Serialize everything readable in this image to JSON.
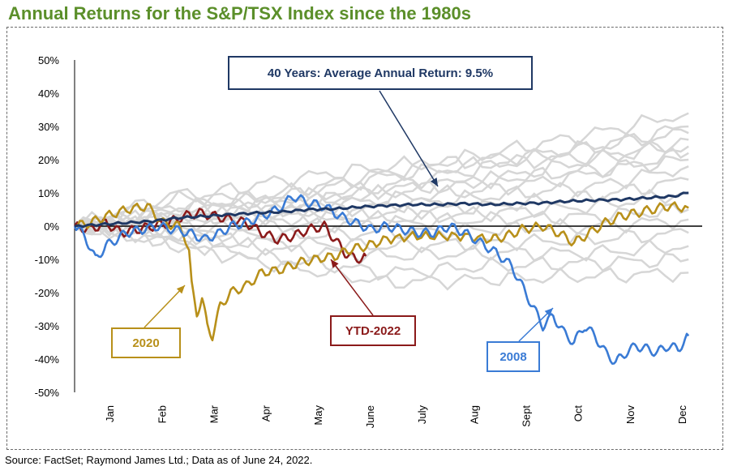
{
  "title": "Annual Returns for the S&P/TSX Index since the 1980s",
  "source": "Source: FactSet; Raymond James Ltd.; Data as of June 24, 2022.",
  "colors": {
    "title": "#5b8f2a",
    "gray_years": "#d6d6d6",
    "average": "#1f3864",
    "y2020": "#b8901a",
    "y2008": "#3a7bd5",
    "ytd2022": "#8b1a1a",
    "zero_line": "#000000"
  },
  "chart_data": {
    "type": "line",
    "title": "Annual Returns for the S&P/TSX Index since the 1980s",
    "xlabel": "",
    "ylabel": "",
    "x_categories": [
      "Jan",
      "Feb",
      "Mar",
      "Apr",
      "May",
      "June",
      "July",
      "Aug",
      "Sept",
      "Oct",
      "Nov",
      "Dec"
    ],
    "y_ticks": [
      "50%",
      "40%",
      "30%",
      "20%",
      "10%",
      "0%",
      "-10%",
      "-20%",
      "-30%",
      "-40%",
      "-50%"
    ],
    "ylim": [
      -50,
      50
    ],
    "grid": false,
    "x_unit": "month of year (0 = start of year, 12 = end of year)",
    "series": [
      {
        "name": "40 Years: Average Annual Return: 9.5%",
        "highlight": "average",
        "points": [
          [
            0,
            0
          ],
          [
            0.5,
            0.5
          ],
          [
            1,
            1
          ],
          [
            1.5,
            1.5
          ],
          [
            2,
            2.5
          ],
          [
            2.5,
            3
          ],
          [
            3,
            3.5
          ],
          [
            3.5,
            4
          ],
          [
            4,
            4.3
          ],
          [
            4.5,
            5
          ],
          [
            5,
            5.2
          ],
          [
            5.5,
            5.8
          ],
          [
            6,
            6.2
          ],
          [
            6.5,
            6.5
          ],
          [
            7,
            6.5
          ],
          [
            7.5,
            6.8
          ],
          [
            8,
            6.5
          ],
          [
            8.5,
            6.8
          ],
          [
            9,
            7
          ],
          [
            9.5,
            7.5
          ],
          [
            10,
            7.8
          ],
          [
            10.5,
            8
          ],
          [
            11,
            8.5
          ],
          [
            11.5,
            9
          ],
          [
            11.8,
            10
          ]
        ]
      },
      {
        "name": "2020",
        "highlight": "y2020",
        "points": [
          [
            0,
            0
          ],
          [
            0.3,
            1
          ],
          [
            0.6,
            3
          ],
          [
            1,
            5
          ],
          [
            1.4,
            6
          ],
          [
            1.7,
            1
          ],
          [
            2,
            0
          ],
          [
            2.1,
            -2
          ],
          [
            2.2,
            -8
          ],
          [
            2.25,
            -18
          ],
          [
            2.35,
            -26
          ],
          [
            2.45,
            -22
          ],
          [
            2.55,
            -30
          ],
          [
            2.65,
            -33
          ],
          [
            2.8,
            -24
          ],
          [
            3,
            -20
          ],
          [
            3.3,
            -18
          ],
          [
            3.6,
            -14
          ],
          [
            4,
            -13
          ],
          [
            4.3,
            -11
          ],
          [
            4.6,
            -10
          ],
          [
            5,
            -9
          ],
          [
            5.3,
            -7
          ],
          [
            5.6,
            -6
          ],
          [
            6,
            -4
          ],
          [
            6.5,
            -3
          ],
          [
            7,
            -3
          ],
          [
            7.5,
            -3
          ],
          [
            8,
            -4
          ],
          [
            8.3,
            -3
          ],
          [
            8.6,
            -1
          ],
          [
            9,
            0
          ],
          [
            9.3,
            -2
          ],
          [
            9.6,
            -5
          ],
          [
            9.9,
            -2
          ],
          [
            10.2,
            1
          ],
          [
            10.5,
            3
          ],
          [
            10.8,
            4
          ],
          [
            11.1,
            5
          ],
          [
            11.4,
            6
          ],
          [
            11.8,
            5.5
          ]
        ]
      },
      {
        "name": "2008",
        "highlight": "y2008",
        "points": [
          [
            0,
            0
          ],
          [
            0.2,
            -3
          ],
          [
            0.4,
            -10
          ],
          [
            0.6,
            -6
          ],
          [
            0.8,
            -4
          ],
          [
            1,
            -2
          ],
          [
            1.3,
            -1
          ],
          [
            1.6,
            0
          ],
          [
            1.9,
            -1
          ],
          [
            2.2,
            -2
          ],
          [
            2.5,
            -4
          ],
          [
            2.8,
            -2
          ],
          [
            3,
            0
          ],
          [
            3.3,
            1
          ],
          [
            3.6,
            3
          ],
          [
            3.9,
            5
          ],
          [
            4.2,
            9
          ],
          [
            4.5,
            7
          ],
          [
            4.8,
            6
          ],
          [
            5.1,
            3
          ],
          [
            5.4,
            1
          ],
          [
            5.7,
            -1
          ],
          [
            6,
            0
          ],
          [
            6.3,
            -1
          ],
          [
            6.6,
            -2
          ],
          [
            6.9,
            -2
          ],
          [
            7.2,
            0
          ],
          [
            7.5,
            -2
          ],
          [
            7.8,
            -5
          ],
          [
            8.1,
            -8
          ],
          [
            8.4,
            -12
          ],
          [
            8.6,
            -18
          ],
          [
            8.8,
            -24
          ],
          [
            9,
            -30
          ],
          [
            9.2,
            -27
          ],
          [
            9.4,
            -32
          ],
          [
            9.6,
            -35
          ],
          [
            9.8,
            -30
          ],
          [
            10,
            -33
          ],
          [
            10.2,
            -38
          ],
          [
            10.4,
            -41
          ],
          [
            10.6,
            -38
          ],
          [
            10.8,
            -36
          ],
          [
            11,
            -37
          ],
          [
            11.2,
            -38
          ],
          [
            11.4,
            -36
          ],
          [
            11.6,
            -37
          ],
          [
            11.8,
            -33
          ]
        ]
      },
      {
        "name": "YTD-2022",
        "highlight": "ytd2022",
        "points": [
          [
            0,
            0
          ],
          [
            0.3,
            -1
          ],
          [
            0.6,
            1
          ],
          [
            0.9,
            -2
          ],
          [
            1.2,
            -1
          ],
          [
            1.5,
            0
          ],
          [
            1.8,
            1
          ],
          [
            2.1,
            3
          ],
          [
            2.4,
            4
          ],
          [
            2.7,
            3
          ],
          [
            3,
            2
          ],
          [
            3.3,
            1
          ],
          [
            3.6,
            -2
          ],
          [
            3.9,
            -4
          ],
          [
            4.2,
            -3
          ],
          [
            4.5,
            -1
          ],
          [
            4.8,
            0
          ],
          [
            5.0,
            -4
          ],
          [
            5.2,
            -8
          ],
          [
            5.4,
            -10
          ],
          [
            5.6,
            -9
          ]
        ]
      }
    ],
    "background_years_note_values": [
      [
        [
          0,
          0
        ],
        [
          2,
          5
        ],
        [
          4,
          10
        ],
        [
          6,
          16
        ],
        [
          8,
          22
        ],
        [
          10,
          28
        ],
        [
          11.8,
          34
        ]
      ],
      [
        [
          0,
          0
        ],
        [
          2,
          4
        ],
        [
          4,
          8
        ],
        [
          6,
          12
        ],
        [
          8,
          18
        ],
        [
          10,
          24
        ],
        [
          11.8,
          30
        ]
      ],
      [
        [
          0,
          0
        ],
        [
          2,
          3
        ],
        [
          4,
          7
        ],
        [
          6,
          10
        ],
        [
          8,
          14
        ],
        [
          10,
          20
        ],
        [
          11.8,
          26
        ]
      ],
      [
        [
          0,
          0
        ],
        [
          2,
          2
        ],
        [
          4,
          5
        ],
        [
          6,
          8
        ],
        [
          8,
          11
        ],
        [
          10,
          16
        ],
        [
          11.8,
          22
        ]
      ],
      [
        [
          0,
          0
        ],
        [
          2,
          3
        ],
        [
          4,
          4
        ],
        [
          6,
          6
        ],
        [
          8,
          9
        ],
        [
          10,
          12
        ],
        [
          11.8,
          18
        ]
      ],
      [
        [
          0,
          0
        ],
        [
          2,
          1
        ],
        [
          4,
          2
        ],
        [
          6,
          4
        ],
        [
          8,
          6
        ],
        [
          10,
          9
        ],
        [
          11.8,
          14
        ]
      ],
      [
        [
          0,
          0
        ],
        [
          2,
          2
        ],
        [
          4,
          3
        ],
        [
          6,
          2
        ],
        [
          8,
          4
        ],
        [
          10,
          6
        ],
        [
          11.8,
          10
        ]
      ],
      [
        [
          0,
          0
        ],
        [
          2,
          -1
        ],
        [
          4,
          0
        ],
        [
          6,
          1
        ],
        [
          8,
          2
        ],
        [
          10,
          3
        ],
        [
          11.8,
          5
        ]
      ],
      [
        [
          0,
          0
        ],
        [
          2,
          -2
        ],
        [
          4,
          -3
        ],
        [
          6,
          -2
        ],
        [
          8,
          -1
        ],
        [
          10,
          0
        ],
        [
          11.8,
          2
        ]
      ],
      [
        [
          0,
          0
        ],
        [
          2,
          -3
        ],
        [
          4,
          -5
        ],
        [
          6,
          -6
        ],
        [
          8,
          -5
        ],
        [
          10,
          -4
        ],
        [
          11.8,
          -2
        ]
      ],
      [
        [
          0,
          0
        ],
        [
          2,
          -4
        ],
        [
          4,
          -7
        ],
        [
          6,
          -9
        ],
        [
          8,
          -8
        ],
        [
          10,
          -8
        ],
        [
          11.8,
          -6
        ]
      ],
      [
        [
          0,
          0
        ],
        [
          2,
          -5
        ],
        [
          4,
          -10
        ],
        [
          6,
          -14
        ],
        [
          8,
          -12
        ],
        [
          10,
          -11
        ],
        [
          11.8,
          -10
        ]
      ],
      [
        [
          0,
          0
        ],
        [
          2,
          -6
        ],
        [
          4,
          -12
        ],
        [
          6,
          -17
        ],
        [
          8,
          -16
        ],
        [
          10,
          -15
        ],
        [
          11.8,
          -14
        ]
      ],
      [
        [
          0,
          0
        ],
        [
          2,
          8
        ],
        [
          4,
          14
        ],
        [
          6,
          18
        ],
        [
          8,
          20
        ],
        [
          10,
          24
        ],
        [
          11.8,
          28
        ]
      ],
      [
        [
          0,
          0
        ],
        [
          2,
          6
        ],
        [
          4,
          9
        ],
        [
          6,
          15
        ],
        [
          8,
          19
        ],
        [
          10,
          21
        ],
        [
          11.8,
          24
        ]
      ],
      [
        [
          0,
          0
        ],
        [
          2,
          10
        ],
        [
          4,
          6
        ],
        [
          6,
          11
        ],
        [
          8,
          14
        ],
        [
          10,
          17
        ],
        [
          11.8,
          20
        ]
      ]
    ]
  },
  "callouts": {
    "average": "40 Years: Average Annual Return: 9.5%",
    "y2020": "2020",
    "ytd2022": "YTD-2022",
    "y2008": "2008"
  }
}
